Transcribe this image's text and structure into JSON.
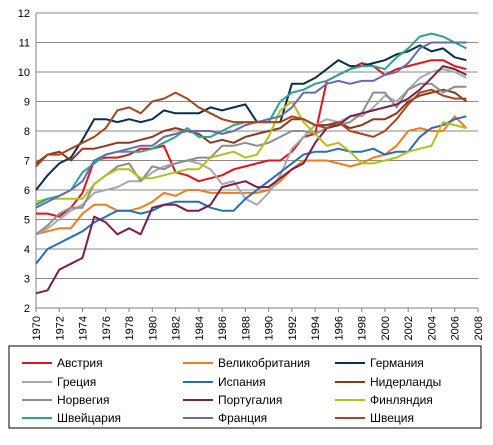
{
  "chart_data": {
    "type": "line",
    "title": "",
    "xlabel": "",
    "ylabel": "",
    "grid": "horizontal",
    "legend_position": "bottom",
    "ylim": [
      2,
      12
    ],
    "xlim": [
      1970,
      2008
    ],
    "x": [
      1970,
      1971,
      1972,
      1973,
      1974,
      1975,
      1976,
      1977,
      1978,
      1979,
      1980,
      1981,
      1982,
      1983,
      1984,
      1985,
      1986,
      1987,
      1988,
      1989,
      1990,
      1991,
      1992,
      1993,
      1994,
      1995,
      1996,
      1997,
      1998,
      1999,
      2000,
      2001,
      2002,
      2003,
      2004,
      2005,
      2006,
      2007
    ],
    "x_ticks": [
      "1970",
      "1972",
      "1974",
      "1976",
      "1978",
      "1980",
      "1982",
      "1984",
      "1986",
      "1988",
      "1990",
      "1992",
      "1994",
      "1996",
      "1998",
      "2000",
      "2002",
      "2004",
      "2006",
      "2008"
    ],
    "y_ticks": [
      "2",
      "3",
      "4",
      "5",
      "6",
      "7",
      "8",
      "9",
      "10",
      "11",
      "12"
    ],
    "series": [
      {
        "name": "Австрия",
        "color": "#e3141b",
        "values": [
          5.2,
          5.2,
          5.1,
          5.4,
          5.9,
          7.0,
          7.1,
          7.1,
          7.2,
          7.4,
          7.4,
          7.5,
          6.6,
          6.5,
          6.3,
          6.4,
          6.5,
          6.7,
          6.8,
          6.9,
          7.0,
          7.0,
          7.3,
          7.8,
          7.9,
          9.7,
          9.9,
          10.1,
          10.3,
          10.2,
          9.9,
          10.1,
          10.2,
          10.3,
          10.4,
          10.4,
          10.2,
          10.1
        ]
      },
      {
        "name": "Великобритания",
        "color": "#f07c1e",
        "values": [
          4.5,
          4.6,
          4.7,
          4.7,
          5.2,
          5.5,
          5.5,
          5.3,
          5.3,
          5.4,
          5.6,
          5.9,
          5.8,
          6.0,
          6.0,
          5.9,
          5.9,
          5.9,
          5.9,
          5.9,
          6.0,
          6.3,
          6.7,
          7.0,
          7.0,
          7.0,
          6.9,
          6.8,
          6.9,
          7.1,
          7.2,
          7.5,
          8.0,
          8.1,
          8.0,
          8.0,
          8.5,
          8.1
        ]
      },
      {
        "name": "Германия",
        "color": "#0b2f4f",
        "values": [
          6.0,
          6.5,
          6.9,
          7.1,
          7.7,
          8.4,
          8.4,
          8.3,
          8.4,
          8.3,
          8.4,
          8.7,
          8.6,
          8.6,
          8.6,
          8.8,
          8.7,
          8.8,
          8.9,
          8.3,
          8.3,
          8.3,
          9.6,
          9.6,
          9.8,
          10.1,
          10.4,
          10.2,
          10.2,
          10.3,
          10.4,
          10.6,
          10.7,
          10.9,
          10.7,
          10.8,
          10.5,
          10.4
        ]
      },
      {
        "name": "Греция",
        "color": "#a9a9a9",
        "values": [
          4.5,
          4.7,
          5.0,
          5.3,
          5.5,
          5.9,
          6.0,
          6.1,
          6.3,
          6.3,
          6.6,
          6.8,
          6.9,
          7.0,
          6.9,
          6.7,
          6.2,
          6.3,
          5.7,
          5.5,
          5.9,
          6.5,
          7.4,
          7.8,
          8.2,
          8.4,
          8.3,
          8.5,
          8.5,
          8.8,
          9.2,
          9.0,
          9.4,
          9.8,
          10.0,
          10.1,
          10.0,
          9.8
        ]
      },
      {
        "name": "Испания",
        "color": "#2a6db5",
        "values": [
          3.5,
          4.0,
          4.2,
          4.4,
          4.6,
          4.9,
          5.1,
          5.3,
          5.3,
          5.2,
          5.3,
          5.5,
          5.6,
          5.6,
          5.6,
          5.4,
          5.3,
          5.3,
          5.7,
          6.0,
          6.3,
          6.6,
          6.9,
          7.2,
          7.3,
          7.3,
          7.4,
          7.3,
          7.3,
          7.4,
          7.2,
          7.3,
          7.3,
          7.8,
          8.1,
          8.2,
          8.4,
          8.5
        ]
      },
      {
        "name": "Нидерланды",
        "color": "#8b3a1e",
        "values": [
          6.9,
          7.2,
          7.3,
          7.0,
          7.4,
          7.4,
          7.5,
          7.6,
          7.6,
          7.7,
          7.8,
          8.0,
          8.1,
          8.0,
          7.9,
          7.6,
          7.7,
          7.6,
          7.8,
          7.9,
          8.0,
          8.1,
          8.4,
          8.4,
          8.2,
          8.2,
          8.3,
          8.1,
          8.2,
          8.4,
          8.4,
          8.6,
          9.0,
          9.2,
          9.3,
          9.4,
          9.3,
          9.0
        ]
      },
      {
        "name": "Норвегия",
        "color": "#8e8e8e",
        "values": [
          4.5,
          4.8,
          5.2,
          5.4,
          5.4,
          6.2,
          6.5,
          6.8,
          6.9,
          6.3,
          6.8,
          6.7,
          6.9,
          7.0,
          7.1,
          7.1,
          7.5,
          7.5,
          7.6,
          7.5,
          7.6,
          7.8,
          8.0,
          8.0,
          7.9,
          8.1,
          8.2,
          8.3,
          8.6,
          9.3,
          9.3,
          8.8,
          9.4,
          9.6,
          9.6,
          9.3,
          9.5,
          9.5
        ]
      },
      {
        "name": "Португалия",
        "color": "#7b1f4a",
        "values": [
          2.5,
          2.6,
          3.3,
          3.5,
          3.7,
          5.1,
          4.9,
          4.5,
          4.7,
          4.5,
          5.4,
          5.5,
          5.5,
          5.3,
          5.3,
          5.5,
          6.1,
          6.2,
          6.3,
          6.1,
          6.1,
          6.4,
          6.7,
          6.9,
          7.6,
          8.1,
          8.2,
          8.5,
          8.6,
          8.7,
          8.8,
          8.9,
          9.1,
          9.4,
          9.8,
          10.2,
          10.1,
          9.9
        ]
      },
      {
        "name": "Финляндия",
        "color": "#b0c21a",
        "values": [
          5.6,
          5.7,
          5.7,
          5.7,
          5.7,
          6.2,
          6.5,
          6.7,
          6.7,
          6.4,
          6.4,
          6.5,
          6.6,
          6.7,
          6.7,
          7.1,
          7.2,
          7.3,
          7.1,
          7.2,
          7.8,
          8.7,
          9.0,
          8.3,
          7.9,
          7.5,
          7.6,
          7.3,
          6.9,
          6.9,
          7.0,
          7.1,
          7.3,
          7.4,
          7.5,
          8.3,
          8.2,
          8.1
        ]
      },
      {
        "name": "Швейцария",
        "color": "#2ca58c",
        "values": [
          5.5,
          5.7,
          5.8,
          6.0,
          6.6,
          6.9,
          7.2,
          7.3,
          7.3,
          7.3,
          7.4,
          7.6,
          7.8,
          8.1,
          7.8,
          7.8,
          8.0,
          8.2,
          8.3,
          8.3,
          8.3,
          9.0,
          9.3,
          9.4,
          9.6,
          9.7,
          9.9,
          10.1,
          10.2,
          10.2,
          10.1,
          10.5,
          10.8,
          11.2,
          11.3,
          11.2,
          11.0,
          10.8
        ]
      },
      {
        "name": "Франция",
        "color": "#6a6ab0",
        "values": [
          5.4,
          5.6,
          5.8,
          6.0,
          6.3,
          7.0,
          7.2,
          7.3,
          7.4,
          7.5,
          7.5,
          7.8,
          7.9,
          8.0,
          8.0,
          8.0,
          7.9,
          8.0,
          8.2,
          8.3,
          8.4,
          8.5,
          8.8,
          9.3,
          9.3,
          9.6,
          9.7,
          9.6,
          9.7,
          9.7,
          9.9,
          10.0,
          10.3,
          10.8,
          11.0,
          11.0,
          11.0,
          11.0
        ]
      },
      {
        "name": "Швеция",
        "color": "#a5461e",
        "values": [
          6.8,
          7.2,
          7.2,
          7.4,
          7.6,
          7.8,
          8.1,
          8.7,
          8.8,
          8.6,
          9.0,
          9.1,
          9.3,
          9.1,
          8.8,
          8.6,
          8.4,
          8.3,
          8.3,
          8.3,
          8.3,
          8.3,
          8.5,
          8.4,
          8.2,
          8.1,
          8.3,
          8.0,
          7.9,
          7.8,
          8.0,
          8.4,
          8.9,
          9.3,
          9.4,
          9.2,
          9.1,
          9.1
        ]
      }
    ]
  }
}
